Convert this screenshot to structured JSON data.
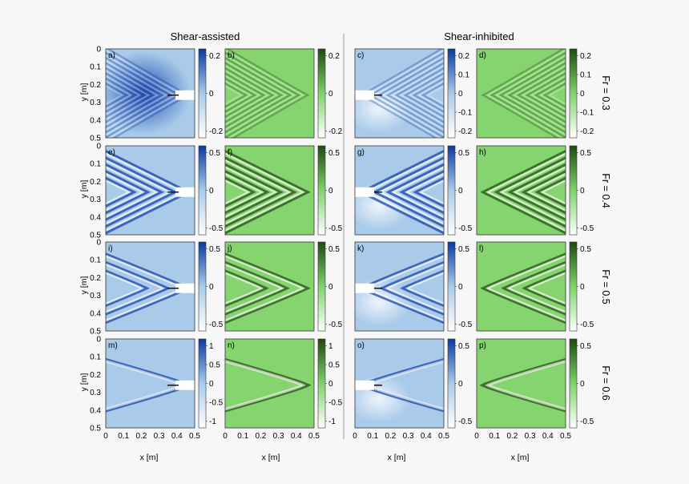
{
  "chart_data": {
    "type": "heatmap",
    "column_headers": [
      "Shear-assisted",
      "Shear-inhibited"
    ],
    "row_labels": [
      "Fr = 0.3",
      "Fr = 0.4",
      "Fr = 0.5",
      "Fr = 0.6"
    ],
    "xlabel": "x [m]",
    "ylabel": "y [m]",
    "x_ticks": [
      "0",
      "0.1",
      "0.2",
      "0.3",
      "0.4",
      "0.5"
    ],
    "y_ticks": [
      "0",
      "0.1",
      "0.2",
      "0.3",
      "0.4",
      "0.5"
    ],
    "xlim": [
      0,
      0.5
    ],
    "ylim": [
      0,
      0.5
    ],
    "colormaps": {
      "measured": [
        "#ffffff",
        "#0b3a9e"
      ],
      "model": [
        "#ffffff",
        "#7ed36a",
        "#1f4a10"
      ]
    },
    "panels": [
      {
        "label": "a)",
        "row": 0,
        "col": 0,
        "cmap": "measured",
        "Fr": 0.3,
        "colorbar_ticks": [
          "0.2",
          "0",
          "-0.2"
        ]
      },
      {
        "label": "b)",
        "row": 0,
        "col": 1,
        "cmap": "model",
        "Fr": 0.3,
        "colorbar_ticks": [
          "0.2",
          "0",
          "-0.2"
        ]
      },
      {
        "label": "c)",
        "row": 0,
        "col": 2,
        "cmap": "measured",
        "Fr": 0.3,
        "colorbar_ticks": [
          "0.2",
          "0.1",
          "0",
          "-0.1",
          "-0.2"
        ]
      },
      {
        "label": "d)",
        "row": 0,
        "col": 3,
        "cmap": "model",
        "Fr": 0.3,
        "colorbar_ticks": [
          "0.2",
          "0.1",
          "0",
          "-0.1",
          "-0.2"
        ]
      },
      {
        "label": "e)",
        "row": 1,
        "col": 0,
        "cmap": "measured",
        "Fr": 0.4,
        "colorbar_ticks": [
          "0.5",
          "0",
          "-0.5"
        ]
      },
      {
        "label": "f)",
        "row": 1,
        "col": 1,
        "cmap": "model",
        "Fr": 0.4,
        "colorbar_ticks": [
          "0.5",
          "0",
          "-0.5"
        ]
      },
      {
        "label": "g)",
        "row": 1,
        "col": 2,
        "cmap": "measured",
        "Fr": 0.4,
        "colorbar_ticks": [
          "0.5",
          "0",
          "-0.5"
        ]
      },
      {
        "label": "h)",
        "row": 1,
        "col": 3,
        "cmap": "model",
        "Fr": 0.4,
        "colorbar_ticks": [
          "0.5",
          "0",
          "-0.5"
        ]
      },
      {
        "label": "i)",
        "row": 2,
        "col": 0,
        "cmap": "measured",
        "Fr": 0.5,
        "colorbar_ticks": [
          "0.5",
          "0",
          "-0.5"
        ]
      },
      {
        "label": "j)",
        "row": 2,
        "col": 1,
        "cmap": "model",
        "Fr": 0.5,
        "colorbar_ticks": [
          "0.5",
          "0",
          "-0.5"
        ]
      },
      {
        "label": "k)",
        "row": 2,
        "col": 2,
        "cmap": "measured",
        "Fr": 0.5,
        "colorbar_ticks": [
          "0.5",
          "0",
          "-0.5"
        ]
      },
      {
        "label": "l)",
        "row": 2,
        "col": 3,
        "cmap": "model",
        "Fr": 0.5,
        "colorbar_ticks": [
          "0.5",
          "0",
          "-0.5"
        ]
      },
      {
        "label": "m)",
        "row": 3,
        "col": 0,
        "cmap": "measured",
        "Fr": 0.6,
        "colorbar_ticks": [
          "1",
          "0.5",
          "0",
          "-0.5",
          "-1"
        ]
      },
      {
        "label": "n)",
        "row": 3,
        "col": 1,
        "cmap": "model",
        "Fr": 0.6,
        "colorbar_ticks": [
          "1",
          "0.5",
          "0",
          "-0.5",
          "-1"
        ]
      },
      {
        "label": "o)",
        "row": 3,
        "col": 2,
        "cmap": "measured",
        "Fr": 0.6,
        "colorbar_ticks": [
          "0.5",
          "0",
          "-0.5"
        ]
      },
      {
        "label": "p)",
        "row": 3,
        "col": 3,
        "cmap": "model",
        "Fr": 0.6,
        "colorbar_ticks": [
          "0.5",
          "0",
          "-0.5"
        ]
      }
    ]
  }
}
